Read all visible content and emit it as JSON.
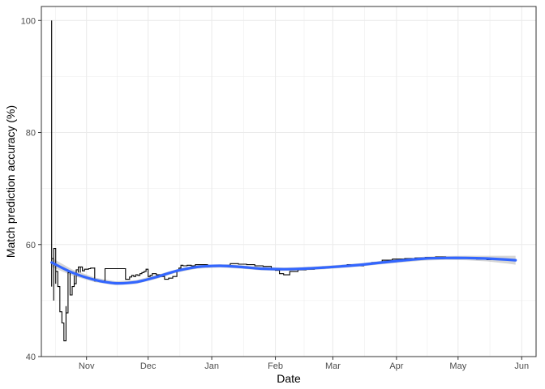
{
  "chart_data": {
    "type": "line",
    "title": "",
    "xlabel": "Date",
    "ylabel": "Match prediction accuracy (%)",
    "x_axis": {
      "type": "date",
      "range": [
        "2017-10-10",
        "2018-06-08"
      ],
      "ticks": [
        {
          "date": "2017-11-01",
          "label": "Nov"
        },
        {
          "date": "2017-12-01",
          "label": "Dec"
        },
        {
          "date": "2018-01-01",
          "label": "Jan"
        },
        {
          "date": "2018-02-01",
          "label": "Feb"
        },
        {
          "date": "2018-03-01",
          "label": "Mar"
        },
        {
          "date": "2018-04-01",
          "label": "Apr"
        },
        {
          "date": "2018-05-01",
          "label": "May"
        },
        {
          "date": "2018-06-01",
          "label": "Jun"
        }
      ]
    },
    "y_axis": {
      "range": [
        40,
        102.5
      ],
      "ticks": [
        40,
        60,
        80,
        100
      ],
      "minor_ticks": [
        50,
        70,
        90
      ]
    },
    "grid": true,
    "legend": "none",
    "colors": {
      "series": "#000000",
      "smooth": "#3366FF",
      "band": "#999999",
      "grid": "#ebebeb",
      "panel_border": "#333333"
    },
    "series": [
      {
        "x": [
          "2017-10-15",
          "2017-10-15",
          "2017-10-15",
          "2017-10-16",
          "2017-10-16",
          "2017-10-17",
          "2017-10-17",
          "2017-10-18",
          "2017-10-18",
          "2017-10-19",
          "2017-10-19",
          "2017-10-20",
          "2017-10-21",
          "2017-10-21",
          "2017-10-22",
          "2017-10-22",
          "2017-10-23",
          "2017-10-23",
          "2017-10-24",
          "2017-10-24",
          "2017-10-25",
          "2017-10-26",
          "2017-10-26",
          "2017-10-27",
          "2017-10-28",
          "2017-10-28",
          "2017-10-29",
          "2017-10-29",
          "2017-10-30",
          "2017-10-31",
          "2017-11-01",
          "2017-11-02",
          "2017-11-03",
          "2017-11-04",
          "2017-11-05",
          "2017-11-05",
          "2017-11-10",
          "2017-11-10",
          "2017-11-20",
          "2017-11-20",
          "2017-11-22",
          "2017-11-23",
          "2017-11-24",
          "2017-11-25",
          "2017-11-26",
          "2017-11-27",
          "2017-11-28",
          "2017-11-29",
          "2017-11-30",
          "2017-12-01",
          "2017-12-02",
          "2017-12-03",
          "2017-12-05",
          "2017-12-07",
          "2017-12-09",
          "2017-12-11",
          "2017-12-13",
          "2017-12-15",
          "2017-12-16",
          "2017-12-17",
          "2017-12-18",
          "2017-12-20",
          "2017-12-22",
          "2017-12-24",
          "2017-12-27",
          "2017-12-30",
          "2018-01-02",
          "2018-01-06",
          "2018-01-10",
          "2018-01-14",
          "2018-01-18",
          "2018-01-22",
          "2018-01-26",
          "2018-01-30",
          "2018-02-01",
          "2018-02-03",
          "2018-02-05",
          "2018-02-08",
          "2018-02-12",
          "2018-02-16",
          "2018-02-20",
          "2018-02-24",
          "2018-02-28",
          "2018-03-04",
          "2018-03-08",
          "2018-03-12",
          "2018-03-16",
          "2018-03-20",
          "2018-03-25",
          "2018-03-30",
          "2018-04-05",
          "2018-04-10",
          "2018-04-15",
          "2018-04-20",
          "2018-04-25",
          "2018-04-30",
          "2018-05-05",
          "2018-05-10",
          "2018-05-15",
          "2018-05-20",
          "2018-05-25",
          "2018-05-29"
        ],
        "y": [
          100,
          52.5,
          57.5,
          50,
          59.3,
          53,
          55.2,
          54,
          52.5,
          51.5,
          48,
          46,
          45,
          42.8,
          49,
          47.8,
          52.5,
          55,
          53.5,
          51,
          52.5,
          54.5,
          53,
          55.5,
          55,
          56,
          55,
          56,
          55.3,
          55.6,
          55.6,
          55.7,
          55.8,
          55.8,
          55.9,
          53.5,
          53.4,
          55.7,
          55.7,
          53.8,
          54.2,
          54.5,
          54.3,
          54.6,
          54.5,
          54.8,
          55,
          55.2,
          55.6,
          54.3,
          54.5,
          54.8,
          54.6,
          54.3,
          53.8,
          54,
          54.3,
          55.3,
          55.8,
          56.3,
          56.2,
          56.3,
          56.2,
          56.4,
          56.4,
          56.1,
          56.2,
          56.3,
          56.6,
          56.5,
          56.4,
          56.2,
          56.1,
          55.6,
          55.4,
          54.8,
          54.6,
          55.2,
          55.5,
          55.6,
          55.9,
          56,
          56,
          56.1,
          56.4,
          56.2,
          56.5,
          56.8,
          57.2,
          57.4,
          57.5,
          57.6,
          57.7,
          57.8,
          57.7,
          57.6,
          57.5,
          57.4,
          57.3,
          57.3,
          57.3,
          57.4
        ]
      }
    ],
    "smooth": {
      "x": [
        "2017-10-15",
        "2017-10-25",
        "2017-11-05",
        "2017-11-15",
        "2017-11-25",
        "2017-12-05",
        "2017-12-15",
        "2017-12-25",
        "2018-01-05",
        "2018-01-15",
        "2018-01-25",
        "2018-02-05",
        "2018-02-15",
        "2018-02-25",
        "2018-03-05",
        "2018-03-15",
        "2018-03-25",
        "2018-04-05",
        "2018-04-15",
        "2018-04-25",
        "2018-05-05",
        "2018-05-15",
        "2018-05-25",
        "2018-05-29"
      ],
      "y": [
        56.8,
        55.0,
        53.7,
        53.1,
        53.3,
        54.2,
        55.3,
        56.0,
        56.2,
        56.0,
        55.7,
        55.6,
        55.7,
        55.9,
        56.1,
        56.4,
        56.8,
        57.2,
        57.5,
        57.6,
        57.6,
        57.5,
        57.3,
        57.2
      ],
      "band": [
        0.8,
        0.55,
        0.4,
        0.35,
        0.35,
        0.35,
        0.3,
        0.3,
        0.3,
        0.3,
        0.3,
        0.3,
        0.3,
        0.3,
        0.3,
        0.3,
        0.3,
        0.35,
        0.35,
        0.35,
        0.4,
        0.5,
        0.7,
        0.8
      ]
    }
  }
}
